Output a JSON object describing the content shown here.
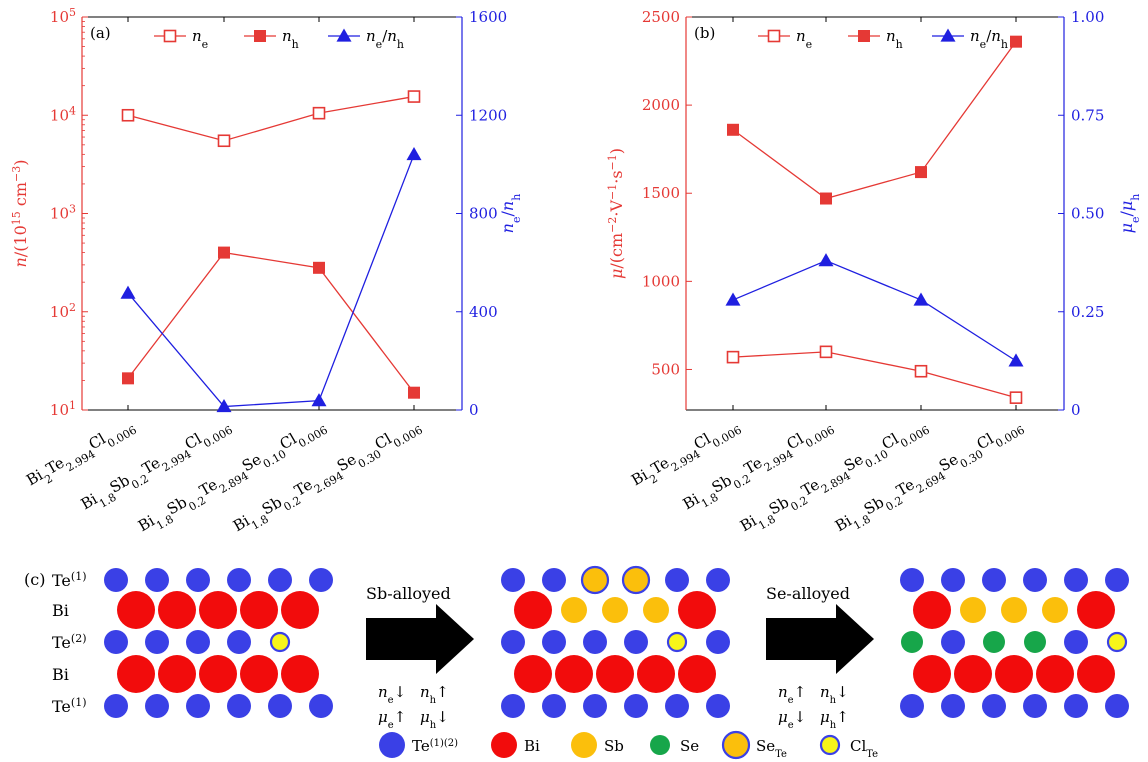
{
  "colors": {
    "red": "#e53935",
    "blue": "#1f1fe0",
    "te": "#3a40e6",
    "bi": "#f20c0c",
    "sb": "#fbbf0c",
    "se": "#17a64a",
    "cl": "#f7f51a",
    "arrow": "#000000"
  },
  "panels": [
    {
      "label": "(a)",
      "categories": [
        "Bi2Te2.994Cl0.006",
        "Bi1.8Sb0.2Te2.994Cl0.006",
        "Bi1.8Sb0.2Te2.894Se0.10Cl0.006",
        "Bi1.8Sb0.2Te2.694Se0.30Cl0.006"
      ],
      "left_axis": {
        "label": "n/(10^15 cm^-3)",
        "scale": "log",
        "range": [
          10,
          100000
        ],
        "ticks": [
          {
            "v": 10,
            "b": "10",
            "e": "1"
          },
          {
            "v": 100,
            "b": "10",
            "e": "2"
          },
          {
            "v": 1000,
            "b": "10",
            "e": "3"
          },
          {
            "v": 10000,
            "b": "10",
            "e": "4"
          },
          {
            "v": 100000,
            "b": "10",
            "e": "5"
          }
        ]
      },
      "right_axis": {
        "label": "ne/nh",
        "range": [
          0,
          1600
        ],
        "ticks": [
          "0",
          "400",
          "800",
          "1200",
          "1600"
        ]
      },
      "legend": [
        "ne",
        "nh",
        "ne/nh"
      ]
    },
    {
      "label": "(b)",
      "categories": [
        "Bi2Te2.994Cl0.006",
        "Bi1.8Sb0.2Te2.994Cl0.006",
        "Bi1.8Sb0.2Te2.894Se0.10Cl0.006",
        "Bi1.8Sb0.2Te2.694Se0.30Cl0.006"
      ],
      "left_axis": {
        "label": "μ/(cm^-2 V^-1 s^-1)",
        "range": [
          270,
          2500
        ],
        "ticks": [
          "500",
          "1000",
          "1500",
          "2000",
          "2500"
        ]
      },
      "right_axis": {
        "label": "μe/μh",
        "range": [
          0,
          1.0
        ],
        "ticks": [
          "0",
          "0.25",
          "0.50",
          "0.75",
          "1.00"
        ]
      },
      "legend": [
        "ne",
        "nh",
        "ne/nh"
      ]
    }
  ],
  "chart_data": [
    {
      "type": "line",
      "title": "(a)",
      "categories": [
        "Bi2Te2.994Cl0.006",
        "Bi1.8Sb0.2Te2.994Cl0.006",
        "Bi1.8Sb0.2Te2.894Se0.10Cl0.006",
        "Bi1.8Sb0.2Te2.694Se0.30Cl0.006"
      ],
      "ylabel": "n/(10^15 cm^-3)",
      "yscale": "log",
      "ylim": [
        10,
        100000
      ],
      "y2label": "ne/nh",
      "y2lim": [
        0,
        1600
      ],
      "legend_position": "top",
      "series": [
        {
          "name": "ne",
          "axis": "left",
          "marker": "open-square",
          "color": "#e53935",
          "values": [
            10000,
            5500,
            10500,
            15500
          ]
        },
        {
          "name": "nh",
          "axis": "left",
          "marker": "filled-square",
          "color": "#e53935",
          "values": [
            21,
            400,
            280,
            15
          ]
        },
        {
          "name": "ne/nh",
          "axis": "right",
          "marker": "filled-triangle",
          "color": "#1f1fe0",
          "values": [
            476,
            14,
            38,
            1040
          ]
        }
      ]
    },
    {
      "type": "line",
      "title": "(b)",
      "categories": [
        "Bi2Te2.994Cl0.006",
        "Bi1.8Sb0.2Te2.994Cl0.006",
        "Bi1.8Sb0.2Te2.894Se0.10Cl0.006",
        "Bi1.8Sb0.2Te2.694Se0.30Cl0.006"
      ],
      "ylabel": "μ/(cm^-2 V^-1 s^-1)",
      "ylim": [
        270,
        2500
      ],
      "y2label": "μe/μh",
      "y2lim": [
        0,
        1.0
      ],
      "legend_position": "top",
      "series": [
        {
          "name": "ne",
          "axis": "left",
          "marker": "open-square",
          "color": "#e53935",
          "values": [
            570,
            600,
            490,
            340
          ]
        },
        {
          "name": "nh",
          "axis": "left",
          "marker": "filled-square",
          "color": "#e53935",
          "values": [
            1860,
            1470,
            1620,
            2360
          ]
        },
        {
          "name": "ne/nh",
          "axis": "right",
          "marker": "filled-triangle",
          "color": "#1f1fe0",
          "values": [
            0.28,
            0.38,
            0.28,
            0.125
          ]
        }
      ]
    }
  ],
  "panel_c": {
    "label": "(c)",
    "row_labels": [
      {
        "base": "Te",
        "sup": "(1)"
      },
      {
        "base": "Bi",
        "sup": ""
      },
      {
        "base": "Te",
        "sup": "(2)"
      },
      {
        "base": "Bi",
        "sup": ""
      },
      {
        "base": "Te",
        "sup": "(1)"
      }
    ],
    "structures": [
      {
        "rows": [
          {
            "kind": "small",
            "atoms": [
              "te",
              "te",
              "te",
              "te",
              "te",
              "te"
            ]
          },
          {
            "kind": "large",
            "atoms": [
              "bi",
              "bi",
              "bi",
              "bi",
              "bi"
            ]
          },
          {
            "kind": "small",
            "atoms": [
              "te",
              "te",
              "te",
              "te",
              "cl"
            ]
          },
          {
            "kind": "large",
            "atoms": [
              "bi",
              "bi",
              "bi",
              "bi",
              "bi"
            ]
          },
          {
            "kind": "small",
            "atoms": [
              "te",
              "te",
              "te",
              "te",
              "te",
              "te"
            ]
          }
        ]
      },
      {
        "rows": [
          {
            "kind": "small",
            "atoms": [
              "te",
              "te",
              "sete",
              "sete",
              "te",
              "te"
            ]
          },
          {
            "kind": "large",
            "atoms": [
              "bi",
              "sb",
              "sb",
              "sb",
              "bi"
            ]
          },
          {
            "kind": "small",
            "atoms": [
              "te",
              "te",
              "te",
              "te",
              "cl",
              "te"
            ]
          },
          {
            "kind": "large",
            "atoms": [
              "bi",
              "bi",
              "bi",
              "bi",
              "bi"
            ]
          },
          {
            "kind": "small",
            "atoms": [
              "te",
              "te",
              "te",
              "te",
              "te",
              "te"
            ]
          }
        ]
      },
      {
        "rows": [
          {
            "kind": "small",
            "atoms": [
              "te",
              "te",
              "te",
              "te",
              "te",
              "te"
            ]
          },
          {
            "kind": "large",
            "atoms": [
              "bi",
              "sb",
              "sb",
              "sb",
              "bi"
            ]
          },
          {
            "kind": "small",
            "atoms": [
              "se",
              "te",
              "se",
              "se",
              "te",
              "cl"
            ]
          },
          {
            "kind": "large",
            "atoms": [
              "bi",
              "bi",
              "bi",
              "bi",
              "bi"
            ]
          },
          {
            "kind": "small",
            "atoms": [
              "te",
              "te",
              "te",
              "te",
              "te",
              "te"
            ]
          }
        ]
      }
    ],
    "arrows": [
      {
        "label": "Sb-alloyed",
        "notes": [
          [
            {
              "t": "n",
              "s": "e",
              "a": "↓"
            },
            {
              "t": "n",
              "s": "h",
              "a": "↑"
            }
          ],
          [
            {
              "t": "μ",
              "s": "e",
              "a": "↑"
            },
            {
              "t": "μ",
              "s": "h",
              "a": "↓"
            }
          ]
        ]
      },
      {
        "label": "Se-alloyed",
        "notes": [
          [
            {
              "t": "n",
              "s": "e",
              "a": "↑"
            },
            {
              "t": "n",
              "s": "h",
              "a": "↓"
            }
          ],
          [
            {
              "t": "μ",
              "s": "e",
              "a": "↓"
            },
            {
              "t": "μ",
              "s": "h",
              "a": "↑"
            }
          ]
        ]
      }
    ],
    "legend": [
      {
        "kind": "te",
        "base": "Te",
        "sup": "(1)(2)",
        "sub": ""
      },
      {
        "kind": "bi",
        "base": "Bi",
        "sup": "",
        "sub": ""
      },
      {
        "kind": "sb",
        "base": "Sb",
        "sup": "",
        "sub": ""
      },
      {
        "kind": "se",
        "base": "Se",
        "sup": "",
        "sub": ""
      },
      {
        "kind": "sete",
        "base": "Se",
        "sup": "",
        "sub": "Te"
      },
      {
        "kind": "cl",
        "base": "Cl",
        "sup": "",
        "sub": "Te"
      }
    ]
  }
}
